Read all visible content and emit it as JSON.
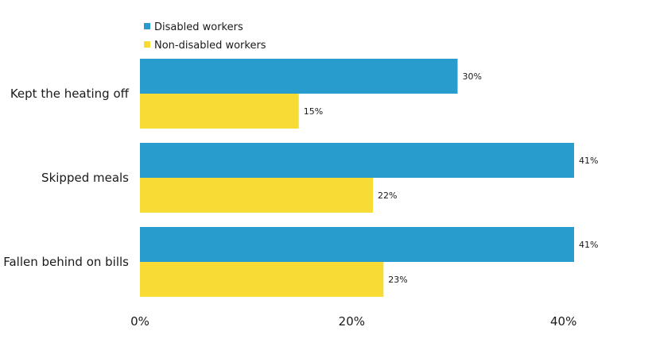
{
  "chart_data": {
    "type": "bar",
    "orientation": "horizontal",
    "categories": [
      "Kept the heating off",
      "Skipped meals",
      "Fallen behind on bills"
    ],
    "series": [
      {
        "name": "Disabled workers",
        "color": "#279ccd",
        "values": [
          30,
          41,
          41
        ],
        "labels": [
          "30%",
          "41%",
          "41%"
        ]
      },
      {
        "name": "Non-disabled workers",
        "color": "#f9db35",
        "values": [
          15,
          22,
          23
        ],
        "labels": [
          "15%",
          "22%",
          "23%"
        ]
      }
    ],
    "xlim": [
      0,
      41
    ],
    "xticks": [
      0,
      20,
      40
    ],
    "xtick_labels": [
      "0%",
      "20%",
      "40%"
    ],
    "legend_position": "top-left",
    "grid": false
  }
}
